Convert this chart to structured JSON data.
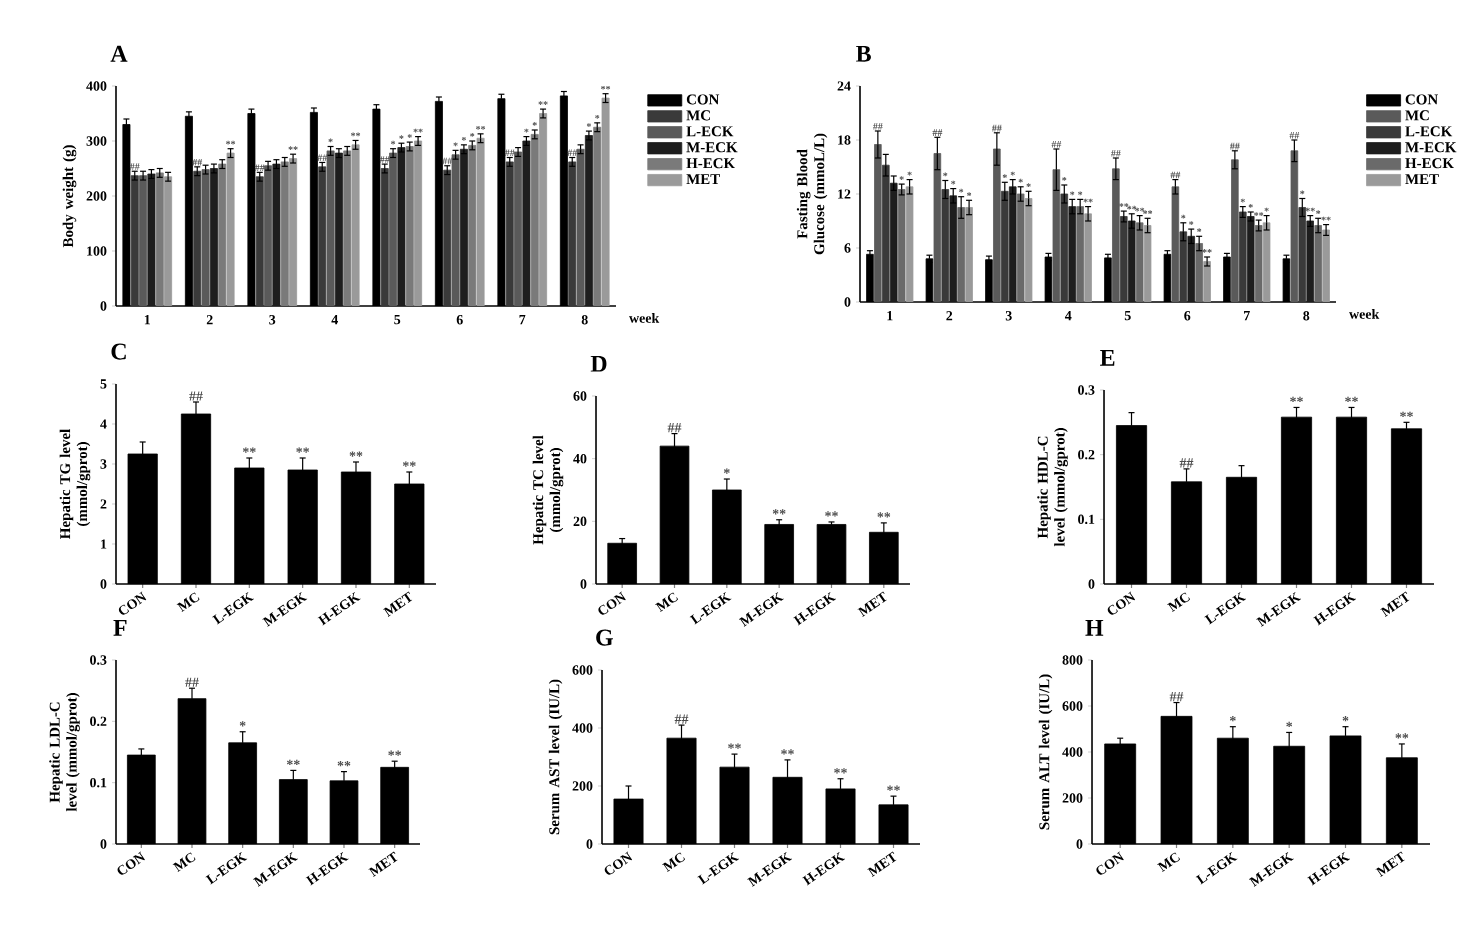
{
  "chart_data": [
    {
      "type": "bar",
      "title": "A",
      "xlabel": "week",
      "ylabel": "Body weight (g)",
      "categories": [
        "1",
        "2",
        "3",
        "4",
        "5",
        "6",
        "7",
        "8"
      ],
      "ylim": [
        0,
        400
      ],
      "yticks": [
        0,
        100,
        200,
        300,
        400
      ],
      "legend": "right",
      "series": [
        {
          "name": "CON",
          "color": "#000000",
          "values": [
            330,
            345,
            350,
            352,
            358,
            372,
            377,
            382
          ],
          "errors": [
            10,
            8,
            8,
            8,
            8,
            8,
            8,
            8
          ]
        },
        {
          "name": "MC",
          "color": "#3a3a3a",
          "values": [
            237,
            245,
            235,
            253,
            250,
            247,
            262,
            262
          ],
          "errors": [
            8,
            8,
            8,
            8,
            8,
            8,
            8,
            8
          ],
          "value_labels": [
            "##",
            "##",
            "##",
            "##",
            "##",
            "##",
            "##",
            "##"
          ]
        },
        {
          "name": "L-ECK",
          "color": "#5a5a5a",
          "values": [
            237,
            248,
            255,
            282,
            278,
            275,
            280,
            285
          ],
          "errors": [
            8,
            8,
            8,
            8,
            8,
            8,
            8,
            8
          ],
          "value_labels": [
            null,
            null,
            null,
            "*",
            "*",
            "*",
            null,
            null
          ]
        },
        {
          "name": "M-ECK",
          "color": "#1e1e1e",
          "values": [
            240,
            250,
            258,
            278,
            288,
            285,
            300,
            310
          ],
          "errors": [
            8,
            8,
            8,
            8,
            8,
            8,
            8,
            8
          ],
          "value_labels": [
            null,
            null,
            null,
            null,
            "*",
            "*",
            "*",
            "*"
          ]
        },
        {
          "name": "H-ECK",
          "color": "#7a7a7a",
          "values": [
            242,
            258,
            262,
            282,
            290,
            292,
            312,
            325
          ],
          "errors": [
            8,
            8,
            8,
            8,
            8,
            8,
            8,
            8
          ],
          "value_labels": [
            null,
            null,
            null,
            null,
            "*",
            "*",
            "*",
            "*"
          ]
        },
        {
          "name": "MET",
          "color": "#9a9a9a",
          "values": [
            235,
            278,
            268,
            293,
            300,
            305,
            350,
            378
          ],
          "errors": [
            8,
            8,
            8,
            8,
            8,
            8,
            8,
            8
          ],
          "value_labels": [
            null,
            "**",
            "**",
            "**",
            "**",
            "**",
            "**",
            "**"
          ]
        }
      ]
    },
    {
      "type": "bar",
      "title": "B",
      "xlabel": "week",
      "ylabel": "Fasting Blood Glucose (mmoL/L)",
      "categories": [
        "1",
        "2",
        "3",
        "4",
        "5",
        "6",
        "7",
        "8"
      ],
      "ylim": [
        0,
        24
      ],
      "yticks": [
        0,
        6,
        12,
        18,
        24
      ],
      "legend": "right",
      "series": [
        {
          "name": "CON",
          "color": "#000000",
          "values": [
            5.3,
            4.8,
            4.7,
            5.0,
            4.9,
            5.3,
            5.0,
            4.8
          ],
          "errors": [
            0.4,
            0.4,
            0.4,
            0.4,
            0.4,
            0.4,
            0.4,
            0.4
          ]
        },
        {
          "name": "MC",
          "color": "#5a5a5a",
          "values": [
            17.5,
            16.5,
            17.0,
            14.7,
            14.8,
            12.8,
            15.8,
            16.8
          ],
          "errors": [
            1.5,
            1.8,
            1.8,
            2.3,
            1.2,
            0.8,
            1.0,
            1.2
          ],
          "value_labels": [
            "##",
            "##",
            "##",
            "##",
            "##",
            "##",
            "##",
            "##"
          ]
        },
        {
          "name": "L-ECK",
          "color": "#3a3a3a",
          "values": [
            15.2,
            12.5,
            12.3,
            12.0,
            9.5,
            7.8,
            10.0,
            10.5
          ],
          "errors": [
            1.2,
            1.0,
            1.0,
            1.0,
            0.6,
            1.0,
            0.6,
            1.0
          ],
          "value_labels": [
            null,
            "*",
            "*",
            "*",
            "**",
            "*",
            "*",
            "*"
          ]
        },
        {
          "name": "M-ECK",
          "color": "#1e1e1e",
          "values": [
            13.2,
            11.8,
            12.8,
            10.6,
            9.0,
            7.3,
            9.5,
            9.0
          ],
          "errors": [
            0.8,
            0.8,
            0.8,
            0.8,
            0.8,
            0.8,
            0.5,
            0.6
          ],
          "value_labels": [
            null,
            "*",
            "*",
            "*",
            "**",
            "*",
            "*",
            "**"
          ]
        },
        {
          "name": "H-ECK",
          "color": "#6a6a6a",
          "values": [
            12.5,
            10.5,
            12.0,
            10.6,
            8.8,
            6.5,
            8.5,
            8.5
          ],
          "errors": [
            0.6,
            1.2,
            0.8,
            0.8,
            0.8,
            0.8,
            0.6,
            0.8
          ],
          "value_labels": [
            "*",
            "*",
            "*",
            "*",
            "**",
            "*",
            "**",
            "*"
          ]
        },
        {
          "name": "MET",
          "color": "#9a9a9a",
          "values": [
            12.8,
            10.5,
            11.5,
            9.8,
            8.5,
            4.5,
            8.8,
            8.0
          ],
          "errors": [
            0.8,
            0.8,
            0.8,
            0.8,
            0.8,
            0.5,
            0.8,
            0.6
          ],
          "value_labels": [
            "*",
            "*",
            "*",
            "**",
            "**",
            "**",
            "*",
            "**"
          ]
        }
      ]
    },
    {
      "type": "bar",
      "title": "C",
      "ylabel": "Hepatic TG level (mmol/gprot)",
      "categories": [
        "CON",
        "MC",
        "L-EGK",
        "M-EGK",
        "H-EGK",
        "MET"
      ],
      "ylim": [
        0,
        5
      ],
      "yticks": [
        0,
        1,
        2,
        3,
        4,
        5
      ],
      "color": "#000000",
      "values": [
        3.25,
        4.25,
        2.9,
        2.85,
        2.8,
        2.5
      ],
      "errors": [
        0.3,
        0.3,
        0.25,
        0.3,
        0.25,
        0.3
      ],
      "value_labels": [
        null,
        "##",
        "**",
        "**",
        "**",
        "**"
      ]
    },
    {
      "type": "bar",
      "title": "D",
      "ylabel": "Hepatic TC level (mmol/gprot)",
      "categories": [
        "CON",
        "MC",
        "L-EGK",
        "M-EGK",
        "H-EGK",
        "MET"
      ],
      "ylim": [
        0,
        60
      ],
      "yticks": [
        0,
        20,
        40,
        60
      ],
      "color": "#000000",
      "values": [
        13,
        44,
        30,
        19,
        19,
        16.5
      ],
      "errors": [
        1.5,
        4,
        3.5,
        1.5,
        0.8,
        3
      ],
      "value_labels": [
        null,
        "##",
        "*",
        "**",
        "**",
        "**"
      ]
    },
    {
      "type": "bar",
      "title": "E",
      "ylabel": "Hepatic HDL-C level (mmol/gprot)",
      "categories": [
        "CON",
        "MC",
        "L-EGK",
        "M-EGK",
        "H-EGK",
        "MET"
      ],
      "ylim": [
        0,
        0.3
      ],
      "yticks": [
        0,
        0.1,
        0.2,
        0.3
      ],
      "color": "#000000",
      "values": [
        0.245,
        0.158,
        0.165,
        0.258,
        0.258,
        0.24
      ],
      "errors": [
        0.02,
        0.02,
        0.018,
        0.015,
        0.015,
        0.01
      ],
      "value_labels": [
        null,
        "##",
        null,
        "**",
        "**",
        "**"
      ]
    },
    {
      "type": "bar",
      "title": "F",
      "ylabel": "Hepatic LDL-C level (mmol/gprot)",
      "categories": [
        "CON",
        "MC",
        "L-EGK",
        "M-EGK",
        "H-EGK",
        "MET"
      ],
      "ylim": [
        0,
        0.3
      ],
      "yticks": [
        0,
        0.1,
        0.2,
        0.3
      ],
      "color": "#000000",
      "values": [
        0.145,
        0.237,
        0.165,
        0.105,
        0.103,
        0.125
      ],
      "errors": [
        0.01,
        0.017,
        0.018,
        0.015,
        0.015,
        0.01
      ],
      "value_labels": [
        null,
        "##",
        "*",
        "**",
        "**",
        "**"
      ]
    },
    {
      "type": "bar",
      "title": "G",
      "ylabel": "Serum AST level (IU/L)",
      "categories": [
        "CON",
        "MC",
        "L-EGK",
        "M-EGK",
        "H-EGK",
        "MET"
      ],
      "ylim": [
        0,
        600
      ],
      "yticks": [
        0,
        200,
        400,
        600
      ],
      "color": "#000000",
      "values": [
        155,
        365,
        265,
        230,
        190,
        135
      ],
      "errors": [
        45,
        45,
        45,
        60,
        35,
        30
      ],
      "value_labels": [
        null,
        "##",
        "**",
        "**",
        "**",
        "**"
      ]
    },
    {
      "type": "bar",
      "title": "H",
      "ylabel": "Serum ALT level (IU/L)",
      "categories": [
        "CON",
        "MC",
        "L-EGK",
        "M-EGK",
        "H-EGK",
        "MET"
      ],
      "ylim": [
        0,
        800
      ],
      "yticks": [
        0,
        200,
        400,
        600,
        800
      ],
      "color": "#000000",
      "values": [
        435,
        555,
        460,
        425,
        470,
        375
      ],
      "errors": [
        25,
        60,
        50,
        60,
        40,
        60
      ],
      "value_labels": [
        null,
        "##",
        "*",
        "*",
        "*",
        "**"
      ]
    }
  ]
}
